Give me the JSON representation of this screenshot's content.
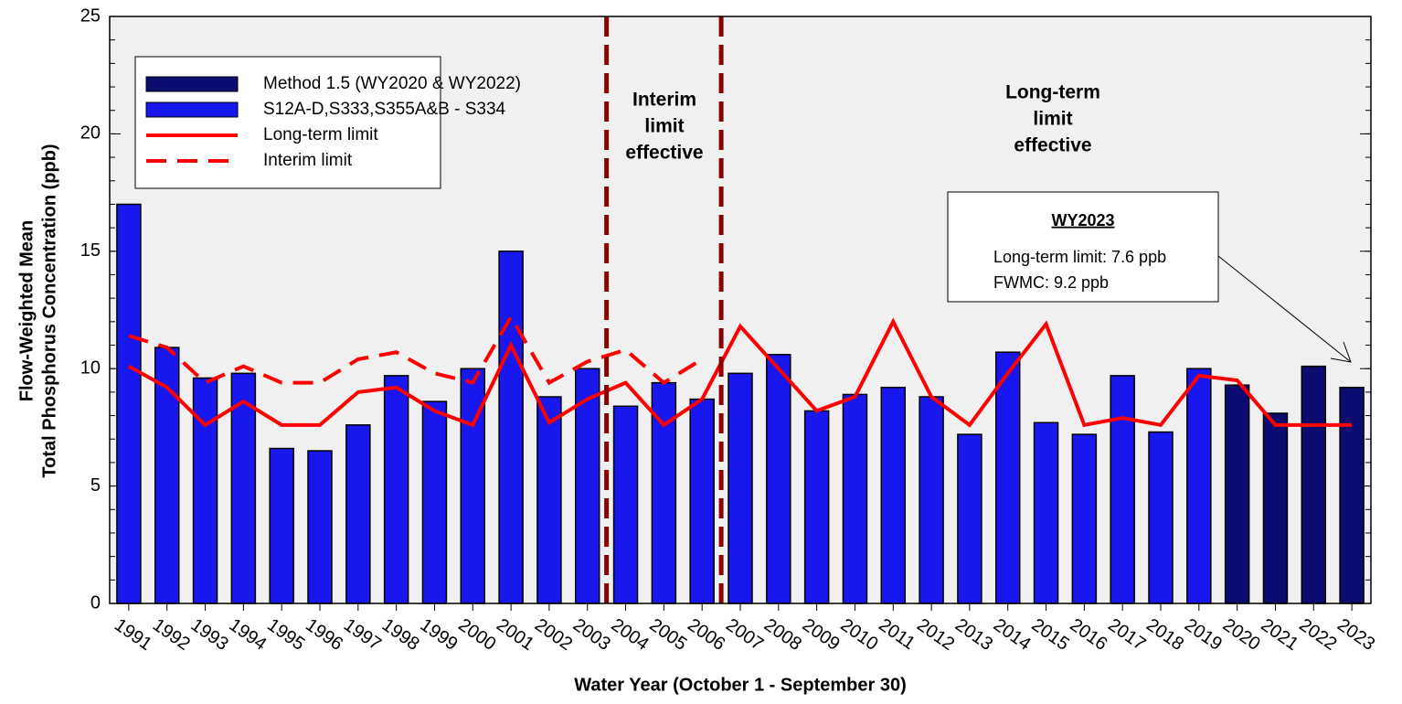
{
  "chart_data": {
    "type": "bar",
    "title_x": "Water Year (October 1 - September 30)",
    "y_label": [
      "Flow-Weighted Mean",
      "Total Phosphorus Concentration (ppb)"
    ],
    "categories": [
      "1991",
      "1992",
      "1993",
      "1994",
      "1995",
      "1996",
      "1997",
      "1998",
      "1999",
      "2000",
      "2001",
      "2002",
      "2003",
      "2004",
      "2005",
      "2006",
      "2007",
      "2008",
      "2009",
      "2010",
      "2011",
      "2012",
      "2013",
      "2014",
      "2015",
      "2016",
      "2017",
      "2018",
      "2019",
      "2020",
      "2021",
      "2022",
      "2023"
    ],
    "series": [
      {
        "name": "Method 1.5 (WY2020 & WY2022)",
        "type": "bar",
        "color": "#0b0b70",
        "values": [
          null,
          null,
          null,
          null,
          null,
          null,
          null,
          null,
          null,
          null,
          null,
          null,
          null,
          null,
          null,
          null,
          null,
          null,
          null,
          null,
          null,
          null,
          null,
          null,
          null,
          null,
          null,
          null,
          null,
          9.3,
          8.1,
          10.1,
          9.2
        ]
      },
      {
        "name": "S12A-D,S333,S355A&B - S334",
        "type": "bar",
        "color": "#1818ee",
        "values": [
          17.0,
          10.9,
          9.6,
          9.8,
          6.6,
          6.5,
          7.6,
          9.7,
          8.6,
          10.0,
          15.0,
          8.8,
          10.0,
          8.4,
          9.4,
          8.7,
          9.8,
          10.6,
          8.2,
          8.9,
          9.2,
          8.8,
          7.2,
          10.7,
          7.7,
          7.2,
          9.7,
          7.3,
          10.0,
          null,
          null,
          null,
          null
        ]
      },
      {
        "name": "Long-term limit",
        "type": "line",
        "dashed": false,
        "color": "#ff0000",
        "values": [
          10.1,
          9.2,
          7.6,
          8.6,
          7.6,
          7.6,
          9.0,
          9.2,
          8.2,
          7.6,
          11.0,
          7.7,
          8.7,
          9.4,
          7.6,
          8.7,
          11.8,
          10.0,
          8.2,
          8.8,
          12.0,
          8.8,
          7.6,
          9.8,
          11.9,
          7.6,
          7.9,
          7.6,
          9.7,
          9.5,
          7.6,
          7.6,
          7.6
        ]
      },
      {
        "name": "Interim limit",
        "type": "line",
        "dashed": true,
        "color": "#ff0000",
        "values": [
          11.4,
          10.9,
          9.4,
          10.1,
          9.4,
          9.4,
          10.4,
          10.7,
          9.8,
          9.4,
          12.2,
          9.4,
          10.3,
          10.8,
          9.4,
          10.4,
          null,
          null,
          null,
          null,
          null,
          null,
          null,
          null,
          null,
          null,
          null,
          null,
          null,
          null,
          null,
          null,
          null
        ]
      }
    ],
    "ylim": [
      0,
      25
    ],
    "yticks": [
      0,
      5,
      10,
      15,
      20,
      25
    ],
    "annotations": {
      "interim": [
        "Interim",
        "limit",
        "effective"
      ],
      "longterm": [
        "Long-term",
        "limit",
        "effective"
      ],
      "box_title": "WY2023",
      "box_lines": [
        "Long-term limit: 7.6 ppb",
        "FWMC: 9.2 ppb"
      ]
    }
  }
}
